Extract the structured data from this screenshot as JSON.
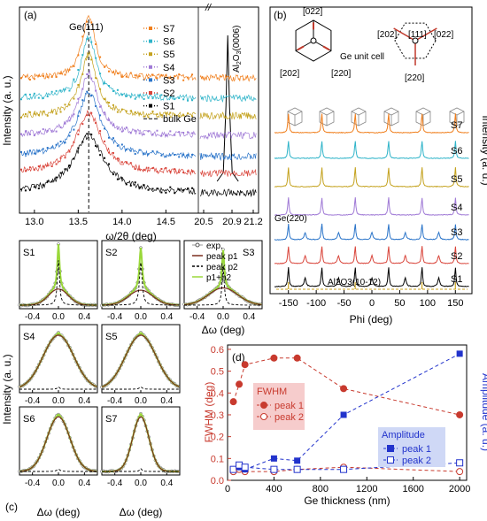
{
  "panel_labels": {
    "a": "(a)",
    "b": "(b)",
    "c": "(c)",
    "d": "(d)"
  },
  "colors": {
    "S1": "#000000",
    "S2": "#d9443a",
    "S3": "#2a74c9",
    "S4": "#a07ad6",
    "S5": "#c4a21e",
    "S6": "#2fb4c9",
    "S7": "#f07f1d",
    "fwhm": "#c83a2e",
    "amp": "#2233cc",
    "fit_p1": "#7a2e1e",
    "fit_sum": "#9ad83a"
  },
  "chart_data": [
    {
      "id": "a",
      "type": "line",
      "xlabel_main": "ω/2θ (deg)",
      "ylabel": "Intensity (a. u.)",
      "xticks_left": [
        "13.0",
        "13.5",
        "14.0",
        "14.5"
      ],
      "xticks_right": [
        "20.5",
        "20.9",
        "21.2"
      ],
      "xlim_left": [
        12.85,
        14.85
      ],
      "xlim_right": [
        20.45,
        21.25
      ],
      "axis_break": "//",
      "annotations": {
        "ge": "Ge(111)",
        "al2o3_main": "Al",
        "al2o3_sub1": "2",
        "al2o3_mid": "O",
        "al2o3_sub2": "3",
        "al2o3_end": "(0006)"
      },
      "legend": {
        "position": "top-right",
        "entries": [
          "S7",
          "S6",
          "S5",
          "S4",
          "S3",
          "S2",
          "S1",
          "bulk Ge"
        ]
      },
      "series": [
        {
          "name": "S7",
          "ge_center": 13.62,
          "ge_width": 0.09
        },
        {
          "name": "S6",
          "ge_center": 13.62,
          "ge_width": 0.1
        },
        {
          "name": "S5",
          "ge_center": 13.62,
          "ge_width": 0.11
        },
        {
          "name": "S4",
          "ge_center": 13.62,
          "ge_width": 0.13
        },
        {
          "name": "S3",
          "ge_center": 13.62,
          "ge_width": 0.16
        },
        {
          "name": "S2",
          "ge_center": 13.62,
          "ge_width": 0.18
        },
        {
          "name": "S1",
          "ge_center": 13.62,
          "ge_width": 0.21
        }
      ],
      "reference_line": {
        "name": "bulk Ge",
        "x": 13.62
      },
      "substrate_peak": {
        "x": 20.84
      }
    },
    {
      "id": "b",
      "type": "line",
      "xlabel": "Phi (deg)",
      "ylabel": "Intensity (a. u.)",
      "xticks": [
        "-150",
        "-100",
        "-50",
        "0",
        "50",
        "100",
        "150"
      ],
      "xlim": [
        -175,
        175
      ],
      "labels": {
        "cell": "Ge unit cell",
        "d1_top": "[022]",
        "d1_left": "[202]",
        "d1_right": "[220]",
        "d2_top": "[111]",
        "d2_left": "[202]",
        "d2_right": "[022]",
        "d2_bottom": "[220]",
        "ge_ref": "Ge(220)",
        "sub_ref": "Al2O3(10-12)"
      },
      "series_labels": [
        "S7",
        "S6",
        "S5",
        "S4",
        "S3",
        "S2",
        "S1"
      ],
      "peaks_phi": [
        -150,
        -90,
        -30,
        30,
        90,
        150
      ],
      "twin_peaks_phi": [
        -120,
        -60,
        0,
        60,
        120
      ],
      "substrate_peaks_phi": [
        -150,
        -30,
        90,
        150
      ]
    },
    {
      "id": "c",
      "type": "line",
      "xlabel": "Δω (deg)",
      "ylabel": "Intensity (a. u.)",
      "xticks": [
        "-0.4",
        "0.0",
        "0.4"
      ],
      "xlim": [
        -0.6,
        0.6
      ],
      "legend": {
        "position": "top-right",
        "entries": [
          "exp.",
          "peak p1",
          "peak p2",
          "p1+p2"
        ]
      },
      "subplots": [
        {
          "name": "S1",
          "p1_fwhm": 0.36,
          "p2_fwhm": 0.04,
          "p1_amp": 0.28,
          "p2_amp": 0.78
        },
        {
          "name": "S2",
          "p1_fwhm": 0.44,
          "p2_fwhm": 0.05,
          "p1_amp": 0.26,
          "p2_amp": 0.74
        },
        {
          "name": "S3",
          "p1_fwhm": 0.53,
          "p2_fwhm": 0.04,
          "p1_amp": 0.3,
          "p2_amp": 0.66
        },
        {
          "name": "S4",
          "p1_fwhm": 0.56,
          "p2_fwhm": 0.04,
          "p1_amp": 0.94,
          "p2_amp": 0.04
        },
        {
          "name": "S5",
          "p1_fwhm": 0.56,
          "p2_fwhm": 0.05,
          "p1_amp": 0.94,
          "p2_amp": 0.04
        },
        {
          "name": "S6",
          "p1_fwhm": 0.42,
          "p2_fwhm": 0.06,
          "p1_amp": 0.95,
          "p2_amp": 0.04
        },
        {
          "name": "S7",
          "p1_fwhm": 0.3,
          "p2_fwhm": 0.04,
          "p1_amp": 0.95,
          "p2_amp": 0.05
        }
      ]
    },
    {
      "id": "d",
      "type": "scatter",
      "xlabel": "Ge thickness (nm)",
      "ylabel_left": "FWHM (deg)",
      "ylabel_right": "Amplitude (a. u.)",
      "xlim": [
        0,
        2060
      ],
      "ylim_left": [
        0,
        0.62
      ],
      "xticks": [
        "0",
        "400",
        "800",
        "1200",
        "1600",
        "2000"
      ],
      "yticks_left": [
        "0.0",
        "0.1",
        "0.2",
        "0.3",
        "0.4",
        "0.5",
        "0.6"
      ],
      "legend_fwhm": {
        "title": "FWHM",
        "entries": [
          "peak 1",
          "peak 2"
        ]
      },
      "legend_amp": {
        "title": "Amplitude",
        "entries": [
          "peak 1",
          "peak 2"
        ]
      },
      "thickness": [
        50,
        100,
        150,
        400,
        600,
        1000,
        2000
      ],
      "fwhm_peak1": [
        0.36,
        0.44,
        0.53,
        0.56,
        0.56,
        0.42,
        0.3
      ],
      "fwhm_peak2": [
        0.04,
        0.05,
        0.04,
        0.04,
        0.05,
        0.06,
        0.04
      ],
      "amp_peak1": [
        0.05,
        0.06,
        0.05,
        0.1,
        0.09,
        0.3,
        0.58
      ],
      "amp_peak2": [
        0.05,
        0.07,
        0.06,
        0.05,
        0.05,
        0.05,
        0.08
      ]
    }
  ]
}
